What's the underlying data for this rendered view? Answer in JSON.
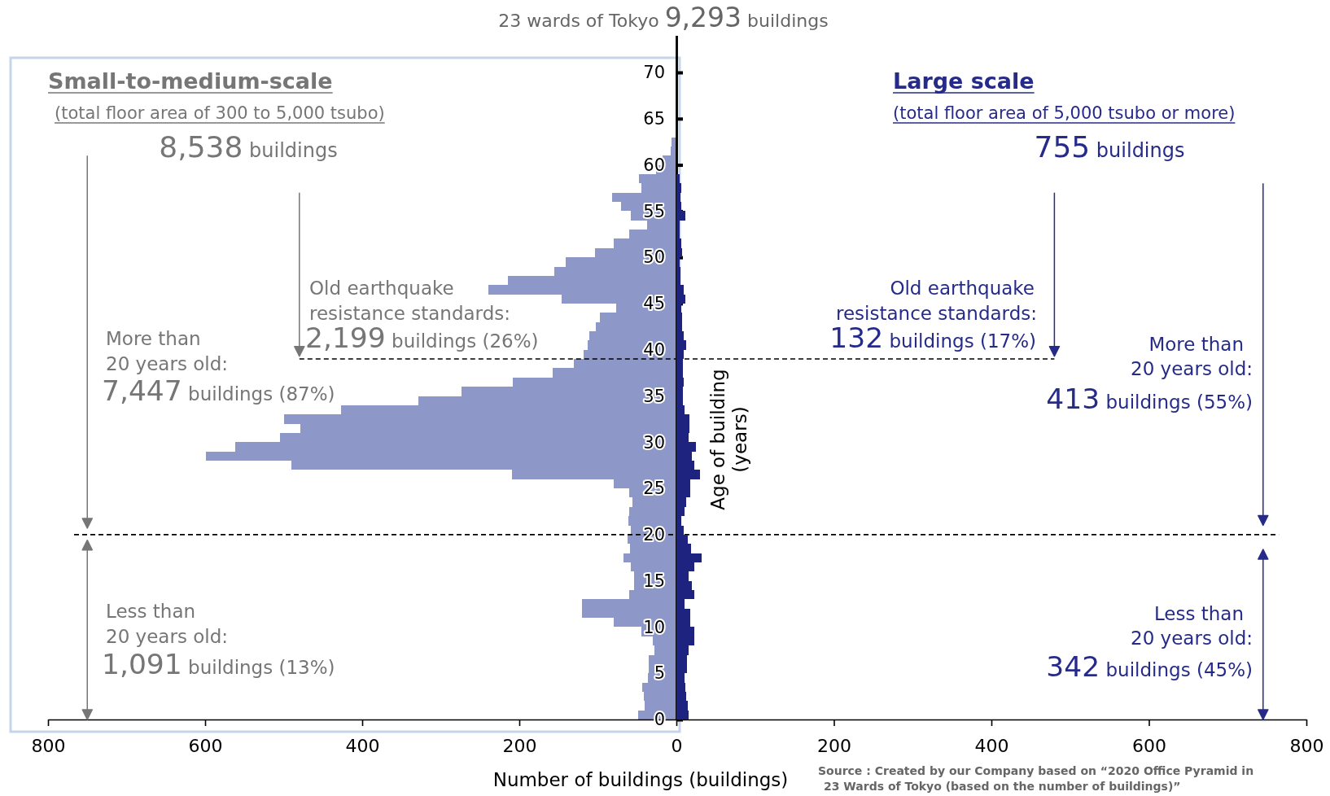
{
  "chart_data": [
    {
      "type": "histogram",
      "orientation": "horizontal",
      "title": "Small-to-medium-scale",
      "subtitle": "(total floor area of 300 to 5,000 tsubo)",
      "xlabel": "Number of buildings (buildings)",
      "bins": [
        0,
        1,
        2,
        3,
        4,
        5,
        6,
        7,
        8,
        9,
        10,
        11,
        12,
        13,
        14,
        15,
        16,
        17,
        18,
        19,
        20,
        21,
        22,
        23,
        24,
        25,
        26,
        27,
        28,
        29,
        30,
        31,
        32,
        33,
        34,
        35,
        36,
        37,
        38,
        39,
        40,
        41,
        42,
        43,
        44,
        45,
        46,
        47,
        48,
        49,
        50,
        51,
        52,
        53,
        54,
        55,
        56,
        57,
        58,
        59,
        60,
        61,
        62,
        63
      ],
      "values": [
        49,
        40,
        41,
        44,
        36,
        35,
        35,
        28,
        30,
        45,
        80,
        120,
        120,
        60,
        54,
        54,
        58,
        67,
        59,
        62,
        58,
        61,
        60,
        56,
        60,
        80,
        209,
        490,
        599,
        562,
        505,
        479,
        499,
        427,
        328,
        274,
        208,
        158,
        131,
        118,
        113,
        111,
        103,
        97,
        77,
        146,
        239,
        215,
        155,
        141,
        104,
        80,
        60,
        37,
        58,
        70,
        82,
        45,
        48,
        26,
        18,
        7,
        6
      ],
      "color": "#8e98c8",
      "xlim": [
        800,
        0
      ],
      "xticks": [
        800,
        600,
        400,
        200,
        0
      ],
      "ylim": [
        0,
        74
      ],
      "yticks": [
        0,
        5,
        10,
        15,
        20,
        25,
        30,
        35,
        40,
        45,
        50,
        55,
        60,
        65,
        70
      ],
      "ref_lines": [
        {
          "axis": "y",
          "value": 20,
          "line_style": "dashed"
        },
        {
          "axis": "y",
          "value": 39,
          "line_style": "dashed"
        }
      ],
      "annotations": [
        "23 wards of Tokyo 9,293 buildings",
        "8,538 buildings",
        "Old earthquake",
        "resistance standards:",
        "2,199 buildings (26%)",
        "More than",
        "20 years old:",
        "7,447 buildings (87%)",
        "Less than",
        "20 years old:",
        "1,091 buildings (13%)"
      ]
    },
    {
      "type": "histogram",
      "orientation": "horizontal",
      "title": "Large scale",
      "subtitle": "(total floor area of 5,000 tsubo or more)",
      "ylabel": "Age of building (years)",
      "tick_labels": "x",
      "bins": [
        0,
        1,
        2,
        3,
        4,
        5,
        6,
        7,
        8,
        9,
        10,
        11,
        12,
        13,
        14,
        15,
        16,
        17,
        18,
        19,
        20,
        21,
        22,
        23,
        24,
        25,
        26,
        27,
        28,
        29,
        30,
        31,
        32,
        33,
        34,
        35,
        36,
        37,
        38,
        39,
        40,
        41,
        42,
        43,
        44,
        45,
        46,
        47,
        48,
        49,
        50,
        51,
        52,
        53,
        54,
        55,
        56,
        57,
        58,
        59,
        60,
        61,
        62,
        63
      ],
      "values": [
        16,
        14,
        12,
        11,
        10,
        13,
        13,
        15,
        23,
        23,
        18,
        18,
        10,
        23,
        20,
        15,
        23,
        32,
        19,
        14,
        9,
        6,
        10,
        12,
        18,
        18,
        30,
        23,
        20,
        25,
        15,
        17,
        17,
        10,
        8,
        8,
        9,
        8,
        8,
        9,
        12,
        9,
        7,
        7,
        6,
        11,
        9,
        5,
        5,
        4,
        7,
        6,
        4,
        4,
        11,
        6,
        5,
        6,
        4,
        0,
        0,
        0,
        0
      ],
      "color": "#1f2380",
      "xlim": [
        0,
        800
      ],
      "xticks": [
        200,
        400,
        600,
        800
      ],
      "ylim": [
        0,
        74
      ],
      "yticks": [
        0,
        5,
        10,
        15,
        20,
        25,
        30,
        35,
        40,
        45,
        50,
        55,
        60,
        65,
        70
      ],
      "ref_lines": [
        {
          "axis": "y",
          "value": 20,
          "line_style": "dashed"
        },
        {
          "axis": "y",
          "value": 39,
          "line_style": "dashed"
        }
      ],
      "annotations": [
        "755 buildings",
        "Old earthquake",
        "resistance standards:",
        "132 buildings (17%)",
        "More than",
        "20 years old:",
        "413 buildings (55%)",
        "Less than",
        "20 years old:",
        "342 buildings (45%)",
        "Source : Created by our Company based on “2020 Office Pyramid in",
        "23 Wards of Tokyo (based on the number of buildings)”"
      ]
    }
  ]
}
